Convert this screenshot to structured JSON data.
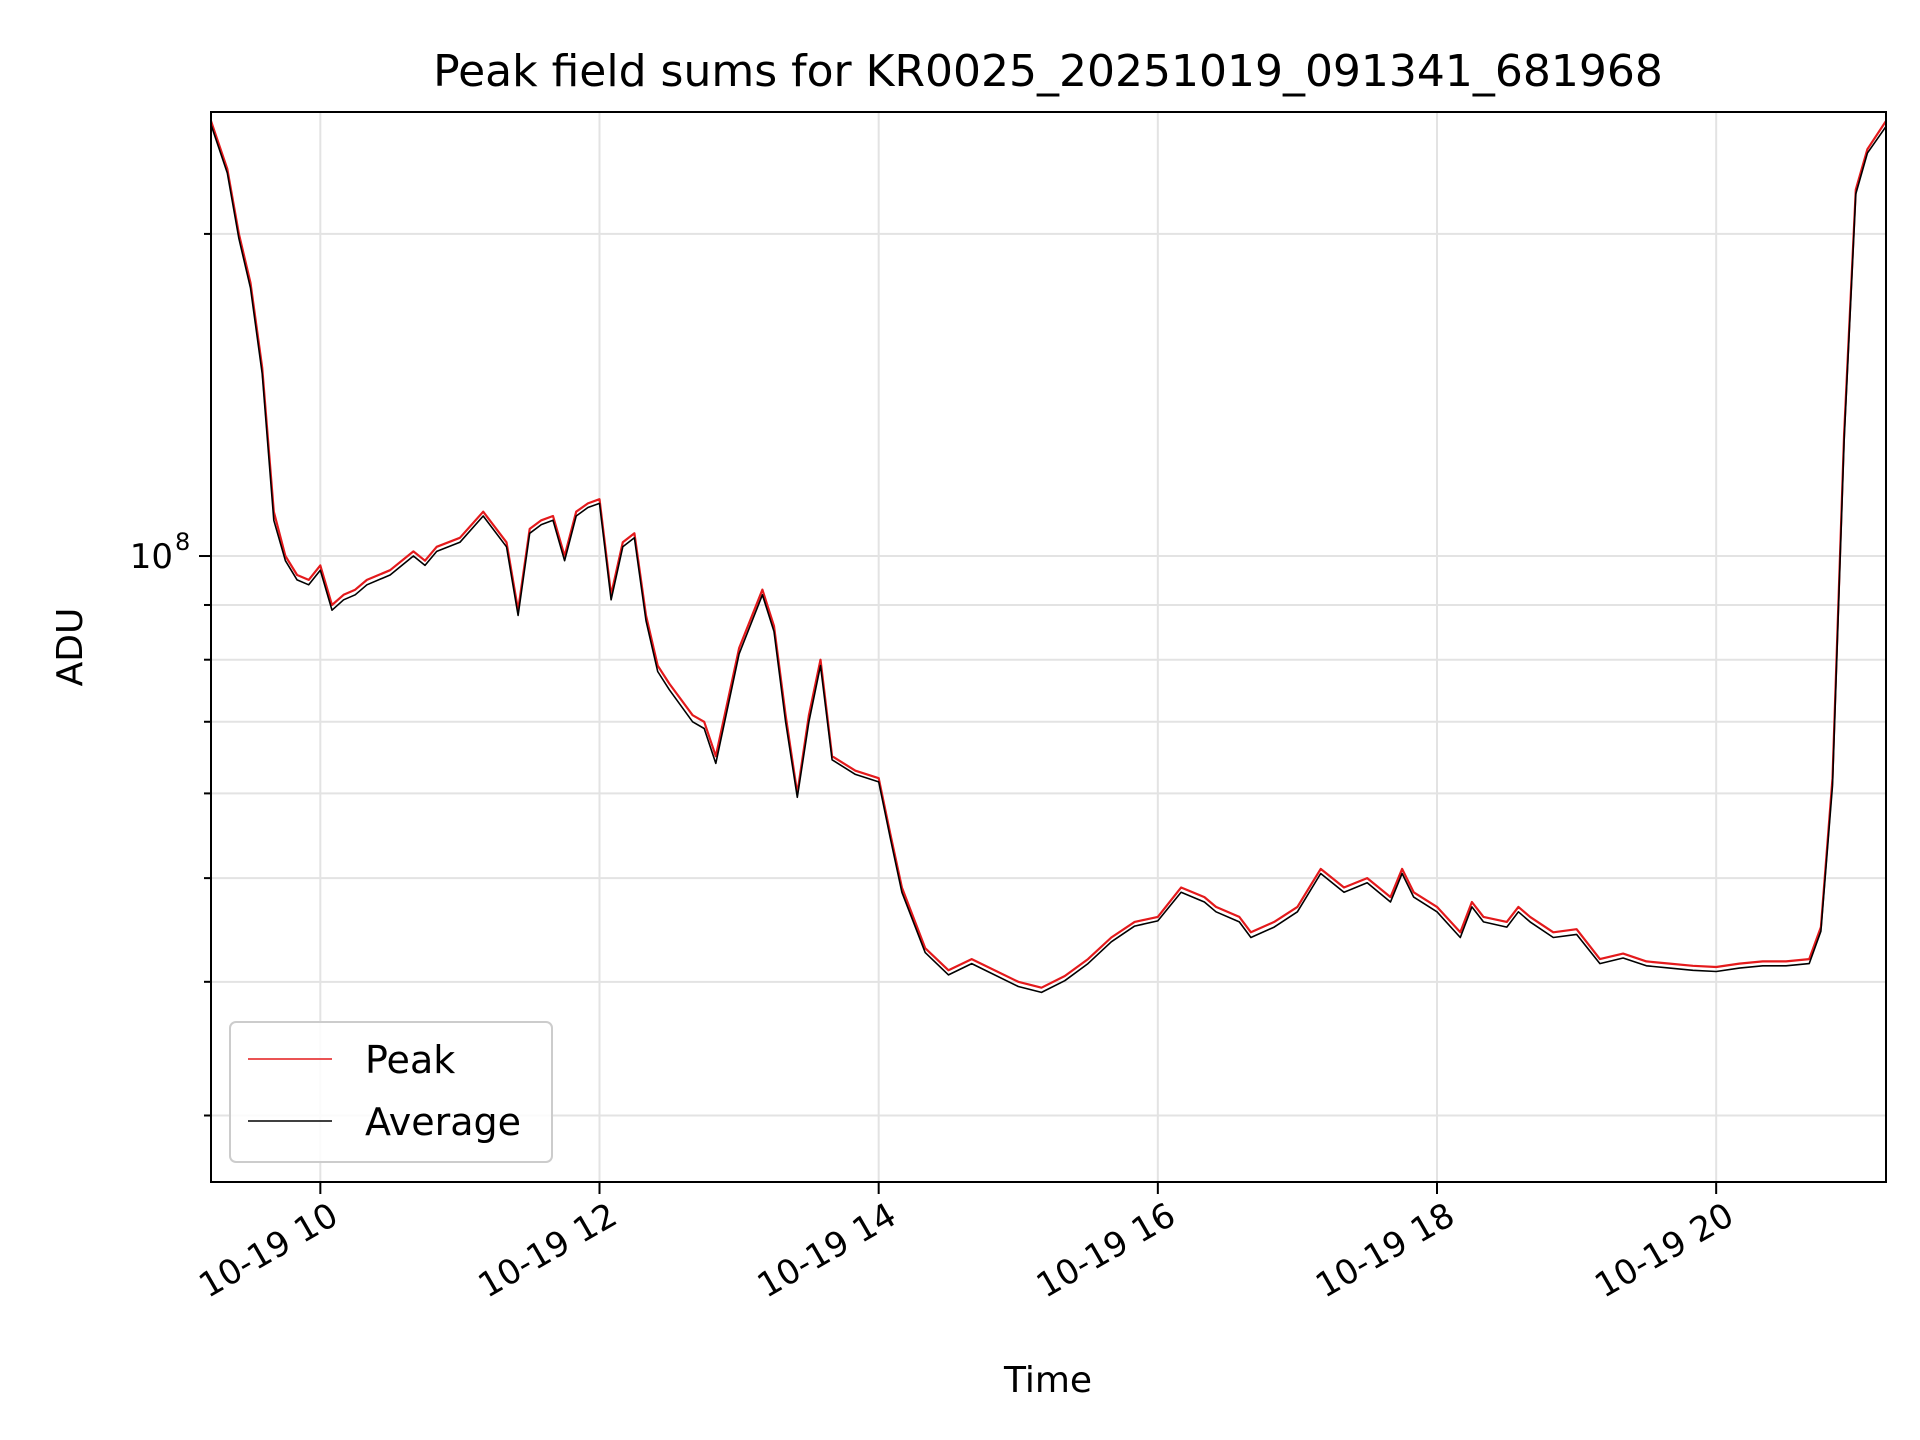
{
  "chart_data": {
    "type": "line",
    "title": "Peak field sums for KR0025_20251019_091341_681968",
    "xlabel": "Time",
    "ylabel": "ADU",
    "y_scale": "log",
    "grid": true,
    "legend_position": "lower-left",
    "xlim": [
      "2025-10-19 09:13",
      "2025-10-19 21:13"
    ],
    "ylim": [
      26000000,
      260000000
    ],
    "x_ticks": [
      "10-19 10",
      "10-19 12",
      "10-19 14",
      "10-19 16",
      "10-19 18",
      "10-19 20"
    ],
    "y_major_tick_label": "10",
    "y_major_tick_exp": "8",
    "series": [
      {
        "name": "Peak",
        "color": "#e41a1c",
        "x": [
          "09:13",
          "09:20",
          "09:25",
          "09:30",
          "09:35",
          "09:40",
          "09:45",
          "09:50",
          "09:55",
          "10:00",
          "10:05",
          "10:10",
          "10:15",
          "10:20",
          "10:30",
          "10:40",
          "10:45",
          "10:50",
          "11:00",
          "11:10",
          "11:20",
          "11:25",
          "11:30",
          "11:35",
          "11:40",
          "11:45",
          "11:50",
          "11:55",
          "12:00",
          "12:05",
          "12:10",
          "12:15",
          "12:20",
          "12:25",
          "12:30",
          "12:40",
          "12:45",
          "12:50",
          "13:00",
          "13:10",
          "13:15",
          "13:20",
          "13:25",
          "13:30",
          "13:35",
          "13:40",
          "13:50",
          "14:00",
          "14:05",
          "14:10",
          "14:20",
          "14:30",
          "14:40",
          "15:00",
          "15:10",
          "15:20",
          "15:30",
          "15:40",
          "15:50",
          "16:00",
          "16:10",
          "16:20",
          "16:25",
          "16:35",
          "16:40",
          "16:50",
          "17:00",
          "17:10",
          "17:20",
          "17:30",
          "17:40",
          "17:45",
          "17:50",
          "18:00",
          "18:10",
          "18:15",
          "18:20",
          "18:30",
          "18:35",
          "18:40",
          "18:50",
          "19:00",
          "19:10",
          "19:20",
          "19:30",
          "19:40",
          "19:50",
          "20:00",
          "20:10",
          "20:20",
          "20:30",
          "20:40",
          "20:45",
          "20:50",
          "20:55",
          "21:00",
          "21:05",
          "21:13"
        ],
        "values": [
          255000000,
          230000000,
          200000000,
          180000000,
          150000000,
          110000000,
          100000000,
          96000000,
          95000000,
          98000000,
          90000000,
          92000000,
          93000000,
          95000000,
          97000000,
          101000000,
          99000000,
          102000000,
          104000000,
          110000000,
          103000000,
          89000000,
          106000000,
          108000000,
          109000000,
          100000000,
          110000000,
          112000000,
          113000000,
          92000000,
          103000000,
          105000000,
          88000000,
          79000000,
          76000000,
          71000000,
          70000000,
          65000000,
          82000000,
          93000000,
          86000000,
          71000000,
          60000000,
          71000000,
          80000000,
          65000000,
          63000000,
          62000000,
          55000000,
          49000000,
          43000000,
          41000000,
          42000000,
          40000000,
          39500000,
          40500000,
          42000000,
          44000000,
          45500000,
          46000000,
          49000000,
          48000000,
          47000000,
          46000000,
          44500000,
          45500000,
          47000000,
          51000000,
          49000000,
          50000000,
          48000000,
          51000000,
          48500000,
          47000000,
          44500000,
          47500000,
          46000000,
          45500000,
          47000000,
          46000000,
          44500000,
          44800000,
          42000000,
          42500000,
          41800000,
          41600000,
          41400000,
          41300000,
          41600000,
          41800000,
          41800000,
          42000000,
          45000000,
          62000000,
          130000000,
          220000000,
          240000000,
          255000000
        ]
      },
      {
        "name": "Average",
        "color": "#000000",
        "x": [
          "09:13",
          "09:20",
          "09:25",
          "09:30",
          "09:35",
          "09:40",
          "09:45",
          "09:50",
          "09:55",
          "10:00",
          "10:05",
          "10:10",
          "10:15",
          "10:20",
          "10:30",
          "10:40",
          "10:45",
          "10:50",
          "11:00",
          "11:10",
          "11:20",
          "11:25",
          "11:30",
          "11:35",
          "11:40",
          "11:45",
          "11:50",
          "11:55",
          "12:00",
          "12:05",
          "12:10",
          "12:15",
          "12:20",
          "12:25",
          "12:30",
          "12:40",
          "12:45",
          "12:50",
          "13:00",
          "13:10",
          "13:15",
          "13:20",
          "13:25",
          "13:30",
          "13:35",
          "13:40",
          "13:50",
          "14:00",
          "14:05",
          "14:10",
          "14:20",
          "14:30",
          "14:40",
          "15:00",
          "15:10",
          "15:20",
          "15:30",
          "15:40",
          "15:50",
          "16:00",
          "16:10",
          "16:20",
          "16:25",
          "16:35",
          "16:40",
          "16:50",
          "17:00",
          "17:10",
          "17:20",
          "17:30",
          "17:40",
          "17:45",
          "17:50",
          "18:00",
          "18:10",
          "18:15",
          "18:20",
          "18:30",
          "18:35",
          "18:40",
          "18:50",
          "19:00",
          "19:10",
          "19:20",
          "19:30",
          "19:40",
          "19:50",
          "20:00",
          "20:10",
          "20:20",
          "20:30",
          "20:40",
          "20:45",
          "20:50",
          "20:55",
          "21:00",
          "21:05",
          "21:13"
        ],
        "values": [
          253000000,
          228000000,
          198000000,
          178000000,
          148000000,
          108000000,
          99000000,
          95000000,
          94000000,
          97000000,
          89000000,
          91000000,
          92000000,
          94000000,
          96000000,
          100000000,
          98000000,
          101000000,
          103000000,
          109000000,
          102000000,
          88000000,
          105000000,
          107000000,
          108000000,
          99000000,
          109000000,
          111000000,
          112000000,
          91000000,
          102000000,
          104000000,
          87000000,
          78000000,
          75000000,
          70000000,
          69000000,
          64000000,
          81000000,
          92000000,
          85000000,
          70000000,
          59500000,
          70000000,
          79000000,
          64500000,
          62500000,
          61500000,
          54500000,
          48500000,
          42600000,
          40600000,
          41600000,
          39600000,
          39100000,
          40100000,
          41600000,
          43600000,
          45100000,
          45600000,
          48500000,
          47500000,
          46500000,
          45500000,
          44000000,
          45000000,
          46500000,
          50500000,
          48500000,
          49500000,
          47500000,
          50500000,
          48000000,
          46500000,
          44000000,
          47000000,
          45500000,
          45000000,
          46500000,
          45500000,
          44000000,
          44300000,
          41600000,
          42100000,
          41400000,
          41200000,
          41000000,
          40900000,
          41200000,
          41400000,
          41400000,
          41600000,
          44600000,
          61000000,
          128000000,
          218000000,
          238000000,
          252000000
        ]
      }
    ]
  }
}
